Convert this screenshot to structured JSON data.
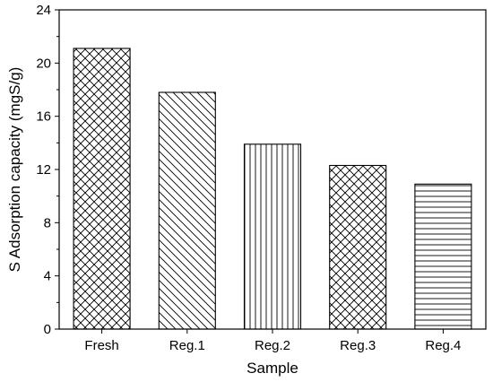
{
  "chart_data": {
    "type": "bar",
    "xlabel": "Sample",
    "ylabel": "S Adsorption capacity (mgS/g)",
    "categories": [
      "Fresh",
      "Reg.1",
      "Reg.2",
      "Reg.3",
      "Reg.4"
    ],
    "values": [
      21.1,
      17.8,
      13.9,
      12.3,
      10.9
    ],
    "patterns": [
      "crosshatch",
      "diagonal-down",
      "vertical",
      "crosshatch",
      "horizontal"
    ],
    "ylim": [
      0,
      24
    ],
    "yticks": [
      0,
      4,
      8,
      12,
      16,
      20,
      24
    ],
    "grid": false,
    "legend": "none"
  }
}
